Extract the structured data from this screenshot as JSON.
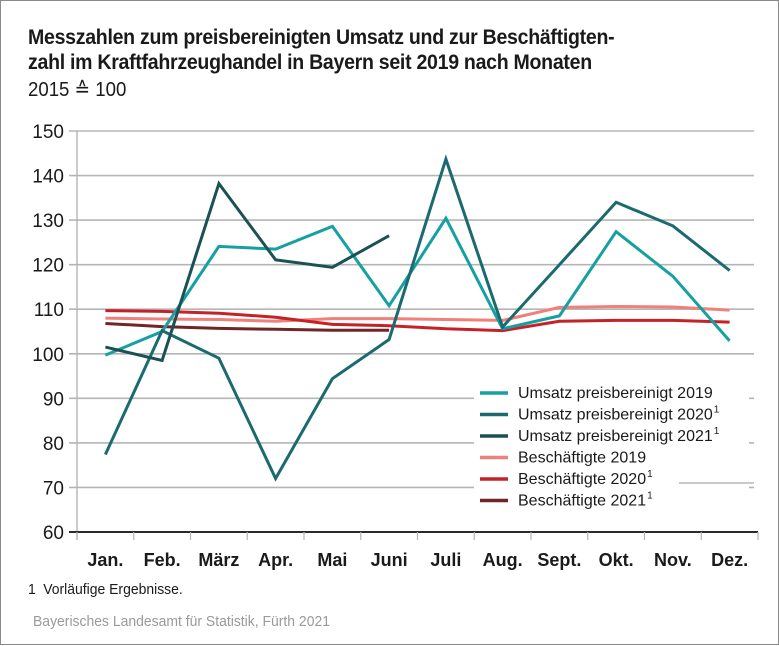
{
  "chart_data": {
    "type": "line",
    "title_lines": [
      "Messzahlen zum preisbereinigten Umsatz und zur Beschäftigten-",
      "zahl im Kraftfahrzeughandel in Bayern seit 2019 nach Monaten"
    ],
    "subtitle": "2015 ≙ 100",
    "xlabel": "",
    "ylabel": "",
    "ylim": [
      60,
      150
    ],
    "yticks": [
      60,
      70,
      80,
      90,
      100,
      110,
      120,
      130,
      140,
      150
    ],
    "grid": true,
    "legend_position": "bottom-right",
    "categories": [
      "Jan.",
      "Feb.",
      "März",
      "Apr.",
      "Mai",
      "Juni",
      "Juli",
      "Aug.",
      "Sept.",
      "Okt.",
      "Nov.",
      "Dez."
    ],
    "series": [
      {
        "name": "Umsatz preisbereinigt 2019",
        "footnote": "",
        "color": "#16a0a2",
        "values": [
          99.7,
          105.0,
          124.1,
          123.5,
          128.6,
          110.8,
          130.4,
          105.6,
          108.5,
          127.4,
          117.4,
          102.9
        ]
      },
      {
        "name": "Umsatz preisbereinigt 2020",
        "footnote": "1",
        "color": "#1a6a70",
        "values": [
          77.4,
          105.2,
          99.0,
          72.0,
          94.4,
          103.2,
          143.7,
          106.0,
          120.0,
          134.0,
          128.7,
          118.7
        ]
      },
      {
        "name": "Umsatz preisbereinigt 2021",
        "footnote": "1",
        "color": "#1b5154",
        "values": [
          101.5,
          98.5,
          138.2,
          121.1,
          119.4,
          126.5,
          null,
          null,
          null,
          null,
          null,
          null
        ]
      },
      {
        "name": "Beschäftigte 2019",
        "footnote": "",
        "color": "#f0807a",
        "values": [
          108.0,
          107.8,
          107.7,
          107.3,
          107.9,
          107.9,
          107.7,
          107.5,
          110.4,
          110.6,
          110.5,
          109.8
        ]
      },
      {
        "name": "Beschäftigte 2020",
        "footnote": "1",
        "color": "#c42228",
        "values": [
          109.7,
          109.5,
          109.1,
          108.2,
          106.6,
          106.3,
          105.6,
          105.2,
          107.3,
          107.5,
          107.5,
          107.1
        ]
      },
      {
        "name": "Beschäftigte 2021",
        "footnote": "1",
        "color": "#6e2626",
        "values": [
          106.8,
          106.1,
          105.7,
          105.5,
          105.3,
          105.3,
          null,
          null,
          null,
          null,
          null,
          null
        ]
      }
    ]
  },
  "footnote": {
    "number": "1",
    "text": "Vorläufige Ergebnisse."
  },
  "source": "Bayerisches Landesamt für Statistik, Fürth 2021"
}
